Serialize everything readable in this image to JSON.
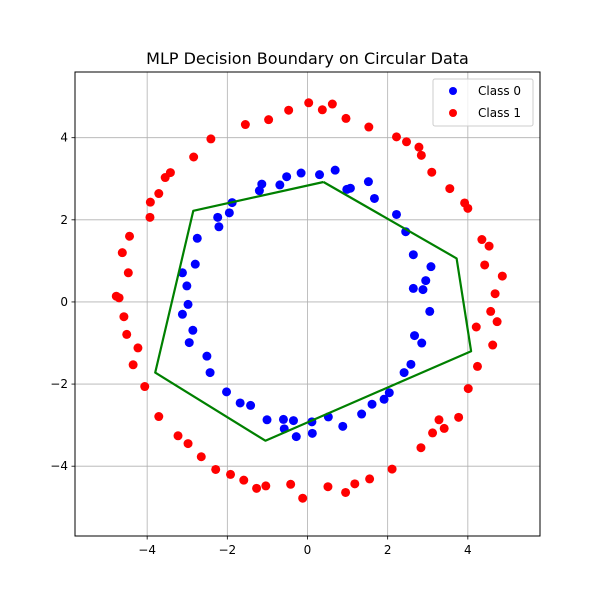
{
  "chart_data": {
    "type": "scatter",
    "title": "MLP Decision Boundary on Circular Data",
    "xlabel": "",
    "ylabel": "",
    "xlim": [
      -5.8,
      5.8
    ],
    "ylim": [
      -5.7,
      5.6
    ],
    "xticks": [
      -4,
      -2,
      0,
      2,
      4
    ],
    "yticks": [
      -4,
      -2,
      0,
      2,
      4
    ],
    "xtick_labels": [
      "−4",
      "−2",
      "0",
      "2",
      "4"
    ],
    "ytick_labels": [
      "−4",
      "−2",
      "0",
      "2",
      "4"
    ],
    "grid": true,
    "legend": {
      "placement": "top-right",
      "entries": [
        {
          "label": "Class 0",
          "color": "#0000ff"
        },
        {
          "label": "Class 1",
          "color": "#ff0000"
        }
      ]
    },
    "series": [
      {
        "name": "Class 0",
        "color": "#0000ff",
        "points": [
          [
            3.05,
            -0.23
          ],
          [
            2.64,
            0.33
          ],
          [
            3.08,
            0.86
          ],
          [
            2.64,
            1.15
          ],
          [
            2.45,
            1.71
          ],
          [
            1.67,
            2.52
          ],
          [
            1.52,
            2.93
          ],
          [
            0.69,
            3.21
          ],
          [
            0.3,
            3.1
          ],
          [
            -0.16,
            3.14
          ],
          [
            -0.69,
            2.85
          ],
          [
            -1.14,
            2.87
          ],
          [
            -1.95,
            2.17
          ],
          [
            -2.21,
            1.83
          ],
          [
            -2.75,
            1.55
          ],
          [
            -2.8,
            0.92
          ],
          [
            -3.01,
            0.39
          ],
          [
            -3.12,
            -0.3
          ],
          [
            -2.86,
            -0.69
          ],
          [
            -2.43,
            -1.72
          ],
          [
            -2.02,
            -2.19
          ],
          [
            -1.68,
            -2.46
          ],
          [
            -1.01,
            -2.87
          ],
          [
            -0.6,
            -2.86
          ],
          [
            -0.28,
            -3.28
          ],
          [
            0.52,
            -2.8
          ],
          [
            0.88,
            -3.03
          ],
          [
            1.35,
            -2.73
          ],
          [
            1.91,
            -2.37
          ],
          [
            2.41,
            -1.72
          ],
          [
            2.58,
            -1.52
          ],
          [
            2.85,
            -1.0
          ],
          [
            -0.35,
            -2.89
          ],
          [
            0.11,
            -2.92
          ],
          [
            1.61,
            -2.49
          ],
          [
            -1.42,
            -2.52
          ],
          [
            -2.95,
            -0.99
          ],
          [
            -3.12,
            0.71
          ],
          [
            -2.24,
            2.06
          ],
          [
            -0.52,
            3.05
          ],
          [
            1.07,
            2.77
          ],
          [
            2.22,
            2.13
          ],
          [
            2.88,
            0.3
          ],
          [
            2.67,
            -0.82
          ],
          [
            2.04,
            -2.21
          ],
          [
            -0.58,
            -3.09
          ],
          [
            -2.51,
            -1.32
          ],
          [
            -1.2,
            2.71
          ],
          [
            0.98,
            2.74
          ],
          [
            -2.98,
            -0.06
          ],
          [
            2.95,
            0.52
          ],
          [
            0.12,
            -3.2
          ],
          [
            -1.88,
            2.42
          ]
        ]
      },
      {
        "name": "Class 1",
        "color": "#ff0000",
        "points": [
          [
            4.68,
            0.2
          ],
          [
            4.86,
            0.63
          ],
          [
            4.57,
            -0.23
          ],
          [
            4.62,
            -1.05
          ],
          [
            4.24,
            -1.57
          ],
          [
            4.01,
            -2.11
          ],
          [
            3.77,
            -2.81
          ],
          [
            3.12,
            -3.19
          ],
          [
            2.83,
            -3.55
          ],
          [
            2.11,
            -4.07
          ],
          [
            1.55,
            -4.31
          ],
          [
            0.95,
            -4.64
          ],
          [
            0.51,
            -4.5
          ],
          [
            -0.42,
            -4.44
          ],
          [
            -1.04,
            -4.48
          ],
          [
            -1.59,
            -4.34
          ],
          [
            -2.29,
            -4.08
          ],
          [
            -2.65,
            -3.77
          ],
          [
            -3.23,
            -3.26
          ],
          [
            -3.71,
            -2.79
          ],
          [
            -4.06,
            -2.06
          ],
          [
            -4.35,
            -1.53
          ],
          [
            -4.51,
            -0.79
          ],
          [
            -4.7,
            0.1
          ],
          [
            -4.77,
            0.14
          ],
          [
            -4.47,
            0.71
          ],
          [
            -4.44,
            1.6
          ],
          [
            -3.93,
            2.06
          ],
          [
            -3.71,
            2.64
          ],
          [
            -3.42,
            3.15
          ],
          [
            -2.84,
            3.53
          ],
          [
            -2.41,
            3.97
          ],
          [
            -1.55,
            4.32
          ],
          [
            -0.97,
            4.44
          ],
          [
            -0.47,
            4.67
          ],
          [
            0.37,
            4.68
          ],
          [
            0.96,
            4.47
          ],
          [
            1.53,
            4.26
          ],
          [
            2.22,
            4.02
          ],
          [
            2.84,
            3.57
          ],
          [
            3.1,
            3.16
          ],
          [
            3.55,
            2.76
          ],
          [
            3.92,
            2.41
          ],
          [
            4.35,
            1.52
          ],
          [
            4.42,
            0.9
          ],
          [
            4.21,
            -0.61
          ],
          [
            3.41,
            -3.08
          ],
          [
            -0.12,
            -4.78
          ],
          [
            -3.55,
            3.03
          ],
          [
            4.0,
            2.28
          ],
          [
            -4.23,
            -1.12
          ],
          [
            2.47,
            3.9
          ],
          [
            -1.92,
            -4.2
          ],
          [
            1.18,
            -4.43
          ],
          [
            4.73,
            -0.48
          ],
          [
            -4.62,
            1.2
          ],
          [
            0.03,
            4.85
          ],
          [
            -2.98,
            -3.45
          ],
          [
            3.28,
            -2.87
          ],
          [
            -3.92,
            2.43
          ],
          [
            2.78,
            3.77
          ],
          [
            -1.27,
            -4.54
          ],
          [
            4.53,
            1.36
          ],
          [
            -4.58,
            -0.36
          ],
          [
            0.62,
            4.82
          ]
        ]
      }
    ],
    "boundary": {
      "color": "#008000",
      "points": [
        [
          0.4,
          2.92
        ],
        [
          -2.85,
          2.22
        ],
        [
          -3.8,
          -1.72
        ],
        [
          -1.05,
          -3.38
        ],
        [
          4.08,
          -1.2
        ],
        [
          3.72,
          1.06
        ],
        [
          0.4,
          2.92
        ]
      ]
    }
  }
}
